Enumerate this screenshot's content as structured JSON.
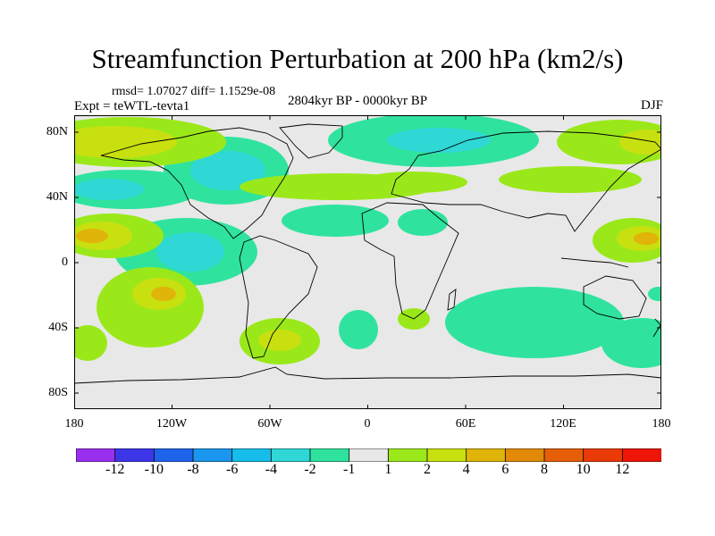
{
  "title": "Streamfunction Perturbation at 200 hPa (km2/s)",
  "stats": "rmsd= 1.07027 diff= 1.1529e-08",
  "experiment": "Expt = teWTL-tevta1",
  "period": "2804kyr BP - 0000kyr BP",
  "season": "DJF",
  "map": {
    "lat_labels": [
      "80N",
      "40N",
      "0",
      "40S",
      "80S"
    ],
    "lon_labels": [
      "180",
      "120W",
      "60W",
      "0",
      "60E",
      "120E",
      "180"
    ]
  },
  "colorbar": {
    "labels": [
      "-12",
      "-10",
      "-8",
      "-6",
      "-4",
      "-2",
      "-1",
      "1",
      "2",
      "4",
      "6",
      "8",
      "10",
      "12"
    ],
    "colors": [
      "#9a2ff0",
      "#3c36e8",
      "#1f63ea",
      "#1a96ee",
      "#16bdea",
      "#2fd7d5",
      "#2fe39e",
      "#e8e8e8",
      "#9be81a",
      "#c8e010",
      "#e0b409",
      "#e28a08",
      "#e65f08",
      "#ea3a08",
      "#ee1608"
    ]
  },
  "colors": {
    "background": "#e8e8e8",
    "neg1": "#2fe39e",
    "neg2": "#2fd7d5",
    "pos1": "#9be81a",
    "pos2": "#c8e010",
    "pos3": "#e0b409"
  }
}
